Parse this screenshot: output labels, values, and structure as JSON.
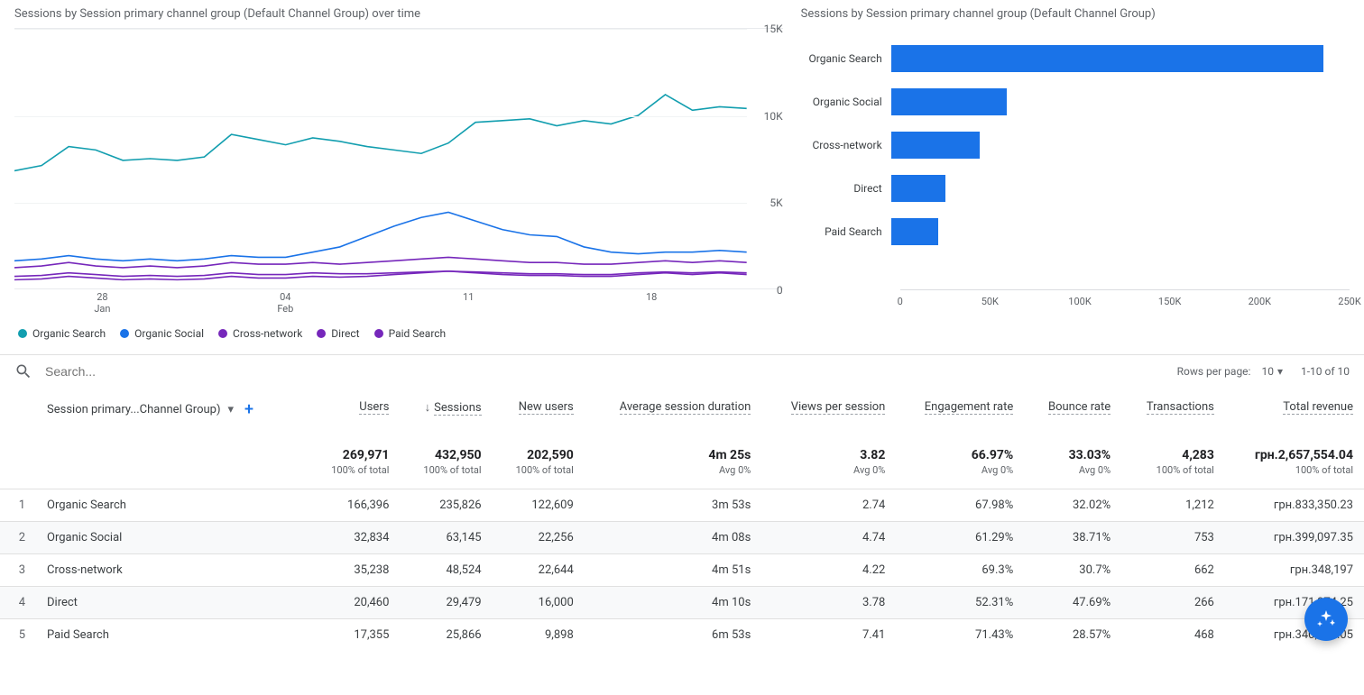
{
  "colors": {
    "series": [
      "#129eaf",
      "#1a73e8",
      "#7627bb",
      "#7627bb",
      "#7627bb"
    ],
    "bar": "#1a73e8",
    "grid": "#f1f3f4",
    "axis_text": "#5f6368",
    "fab_bg": "#1a73e8"
  },
  "line_chart": {
    "title": "Sessions by Session primary channel group (Default Channel Group) over time",
    "y_max": 15000,
    "y_ticks": [
      0,
      5000,
      10000,
      15000
    ],
    "y_tick_labels": [
      "0",
      "5K",
      "10K",
      "15K"
    ],
    "x_ticks": [
      {
        "pos": 0.12,
        "top": "28",
        "bottom": "Jan"
      },
      {
        "pos": 0.37,
        "top": "04",
        "bottom": "Feb"
      },
      {
        "pos": 0.62,
        "top": "11",
        "bottom": ""
      },
      {
        "pos": 0.87,
        "top": "18",
        "bottom": ""
      }
    ],
    "series": [
      {
        "name": "Organic Search",
        "color_idx": 0,
        "values": [
          6800,
          7100,
          8200,
          8000,
          7400,
          7500,
          7400,
          7600,
          8900,
          8600,
          8300,
          8700,
          8500,
          8200,
          8000,
          7800,
          8400,
          9600,
          9700,
          9800,
          9400,
          9700,
          9500,
          10000,
          11200,
          10300,
          10500,
          10400
        ]
      },
      {
        "name": "Organic Social",
        "color_idx": 1,
        "values": [
          1600,
          1700,
          1900,
          1700,
          1600,
          1700,
          1600,
          1700,
          1900,
          1800,
          1800,
          2100,
          2400,
          3000,
          3600,
          4100,
          4400,
          3900,
          3400,
          3100,
          3000,
          2400,
          2100,
          2000,
          2100,
          2100,
          2200,
          2100
        ]
      },
      {
        "name": "Cross-network",
        "color_idx": 2,
        "values": [
          1200,
          1300,
          1500,
          1300,
          1200,
          1300,
          1200,
          1300,
          1500,
          1400,
          1400,
          1500,
          1400,
          1500,
          1600,
          1700,
          1800,
          1700,
          1600,
          1500,
          1500,
          1400,
          1400,
          1500,
          1600,
          1500,
          1600,
          1500
        ]
      },
      {
        "name": "Direct",
        "color_idx": 3,
        "values": [
          700,
          750,
          900,
          800,
          700,
          750,
          700,
          750,
          900,
          800,
          800,
          900,
          850,
          850,
          900,
          950,
          1000,
          950,
          900,
          850,
          850,
          800,
          800,
          900,
          950,
          900,
          950,
          900
        ]
      },
      {
        "name": "Paid Search",
        "color_idx": 4,
        "values": [
          500,
          550,
          700,
          600,
          500,
          550,
          500,
          550,
          700,
          600,
          600,
          700,
          650,
          700,
          800,
          900,
          1000,
          900,
          800,
          750,
          750,
          700,
          700,
          800,
          900,
          800,
          900,
          800
        ]
      }
    ],
    "legend": [
      "Organic Search",
      "Organic Social",
      "Cross-network",
      "Direct",
      "Paid Search"
    ]
  },
  "bar_chart": {
    "title": "Sessions by Session primary channel group (Default Channel Group)",
    "x_max": 250000,
    "x_ticks": [
      0,
      50000,
      100000,
      150000,
      200000,
      250000
    ],
    "x_tick_labels": [
      "0",
      "50K",
      "100K",
      "150K",
      "200K",
      "250K"
    ],
    "bars": [
      {
        "label": "Organic Search",
        "value": 235826
      },
      {
        "label": "Organic Social",
        "value": 63145
      },
      {
        "label": "Cross-network",
        "value": 48524
      },
      {
        "label": "Direct",
        "value": 29479
      },
      {
        "label": "Paid Search",
        "value": 25866
      }
    ]
  },
  "search": {
    "placeholder": "Search..."
  },
  "pagination": {
    "rows_per_page_label": "Rows per page:",
    "rows_per_page_value": "10",
    "range_text": "1-10 of 10"
  },
  "table": {
    "dimension_header": "Session primary...Channel Group)",
    "sorted_column_index": 1,
    "columns": [
      {
        "label": "Users"
      },
      {
        "label": "Sessions"
      },
      {
        "label": "New users"
      },
      {
        "label": "Average session duration"
      },
      {
        "label": "Views per session"
      },
      {
        "label": "Engagement rate"
      },
      {
        "label": "Bounce rate"
      },
      {
        "label": "Transactions"
      },
      {
        "label": "Total revenue"
      }
    ],
    "summary": {
      "values": [
        "269,971",
        "432,950",
        "202,590",
        "4m 25s",
        "3.82",
        "66.97%",
        "33.03%",
        "4,283",
        "грн.2,657,554.04"
      ],
      "subs": [
        "100% of total",
        "100% of total",
        "100% of total",
        "Avg 0%",
        "Avg 0%",
        "Avg 0%",
        "Avg 0%",
        "100% of total",
        "100% of total"
      ]
    },
    "rows": [
      {
        "idx": "1",
        "dim": "Organic Search",
        "cells": [
          "166,396",
          "235,826",
          "122,609",
          "3m 53s",
          "2.74",
          "67.98%",
          "32.02%",
          "1,212",
          "грн.833,350.23"
        ]
      },
      {
        "idx": "2",
        "dim": "Organic Social",
        "cells": [
          "32,834",
          "63,145",
          "22,256",
          "4m 08s",
          "4.74",
          "61.29%",
          "38.71%",
          "753",
          "грн.399,097.35"
        ]
      },
      {
        "idx": "3",
        "dim": "Cross-network",
        "cells": [
          "35,238",
          "48,524",
          "22,644",
          "4m 51s",
          "4.22",
          "69.3%",
          "30.7%",
          "662",
          "грн.348,197"
        ]
      },
      {
        "idx": "4",
        "dim": "Direct",
        "cells": [
          "20,460",
          "29,479",
          "16,000",
          "4m 10s",
          "3.78",
          "52.31%",
          "47.69%",
          "266",
          "грн.171,874.25"
        ]
      },
      {
        "idx": "5",
        "dim": "Paid Search",
        "cells": [
          "17,355",
          "25,866",
          "9,898",
          "6m 53s",
          "7.41",
          "71.43%",
          "28.57%",
          "468",
          "грн.340,332.05"
        ]
      }
    ]
  }
}
